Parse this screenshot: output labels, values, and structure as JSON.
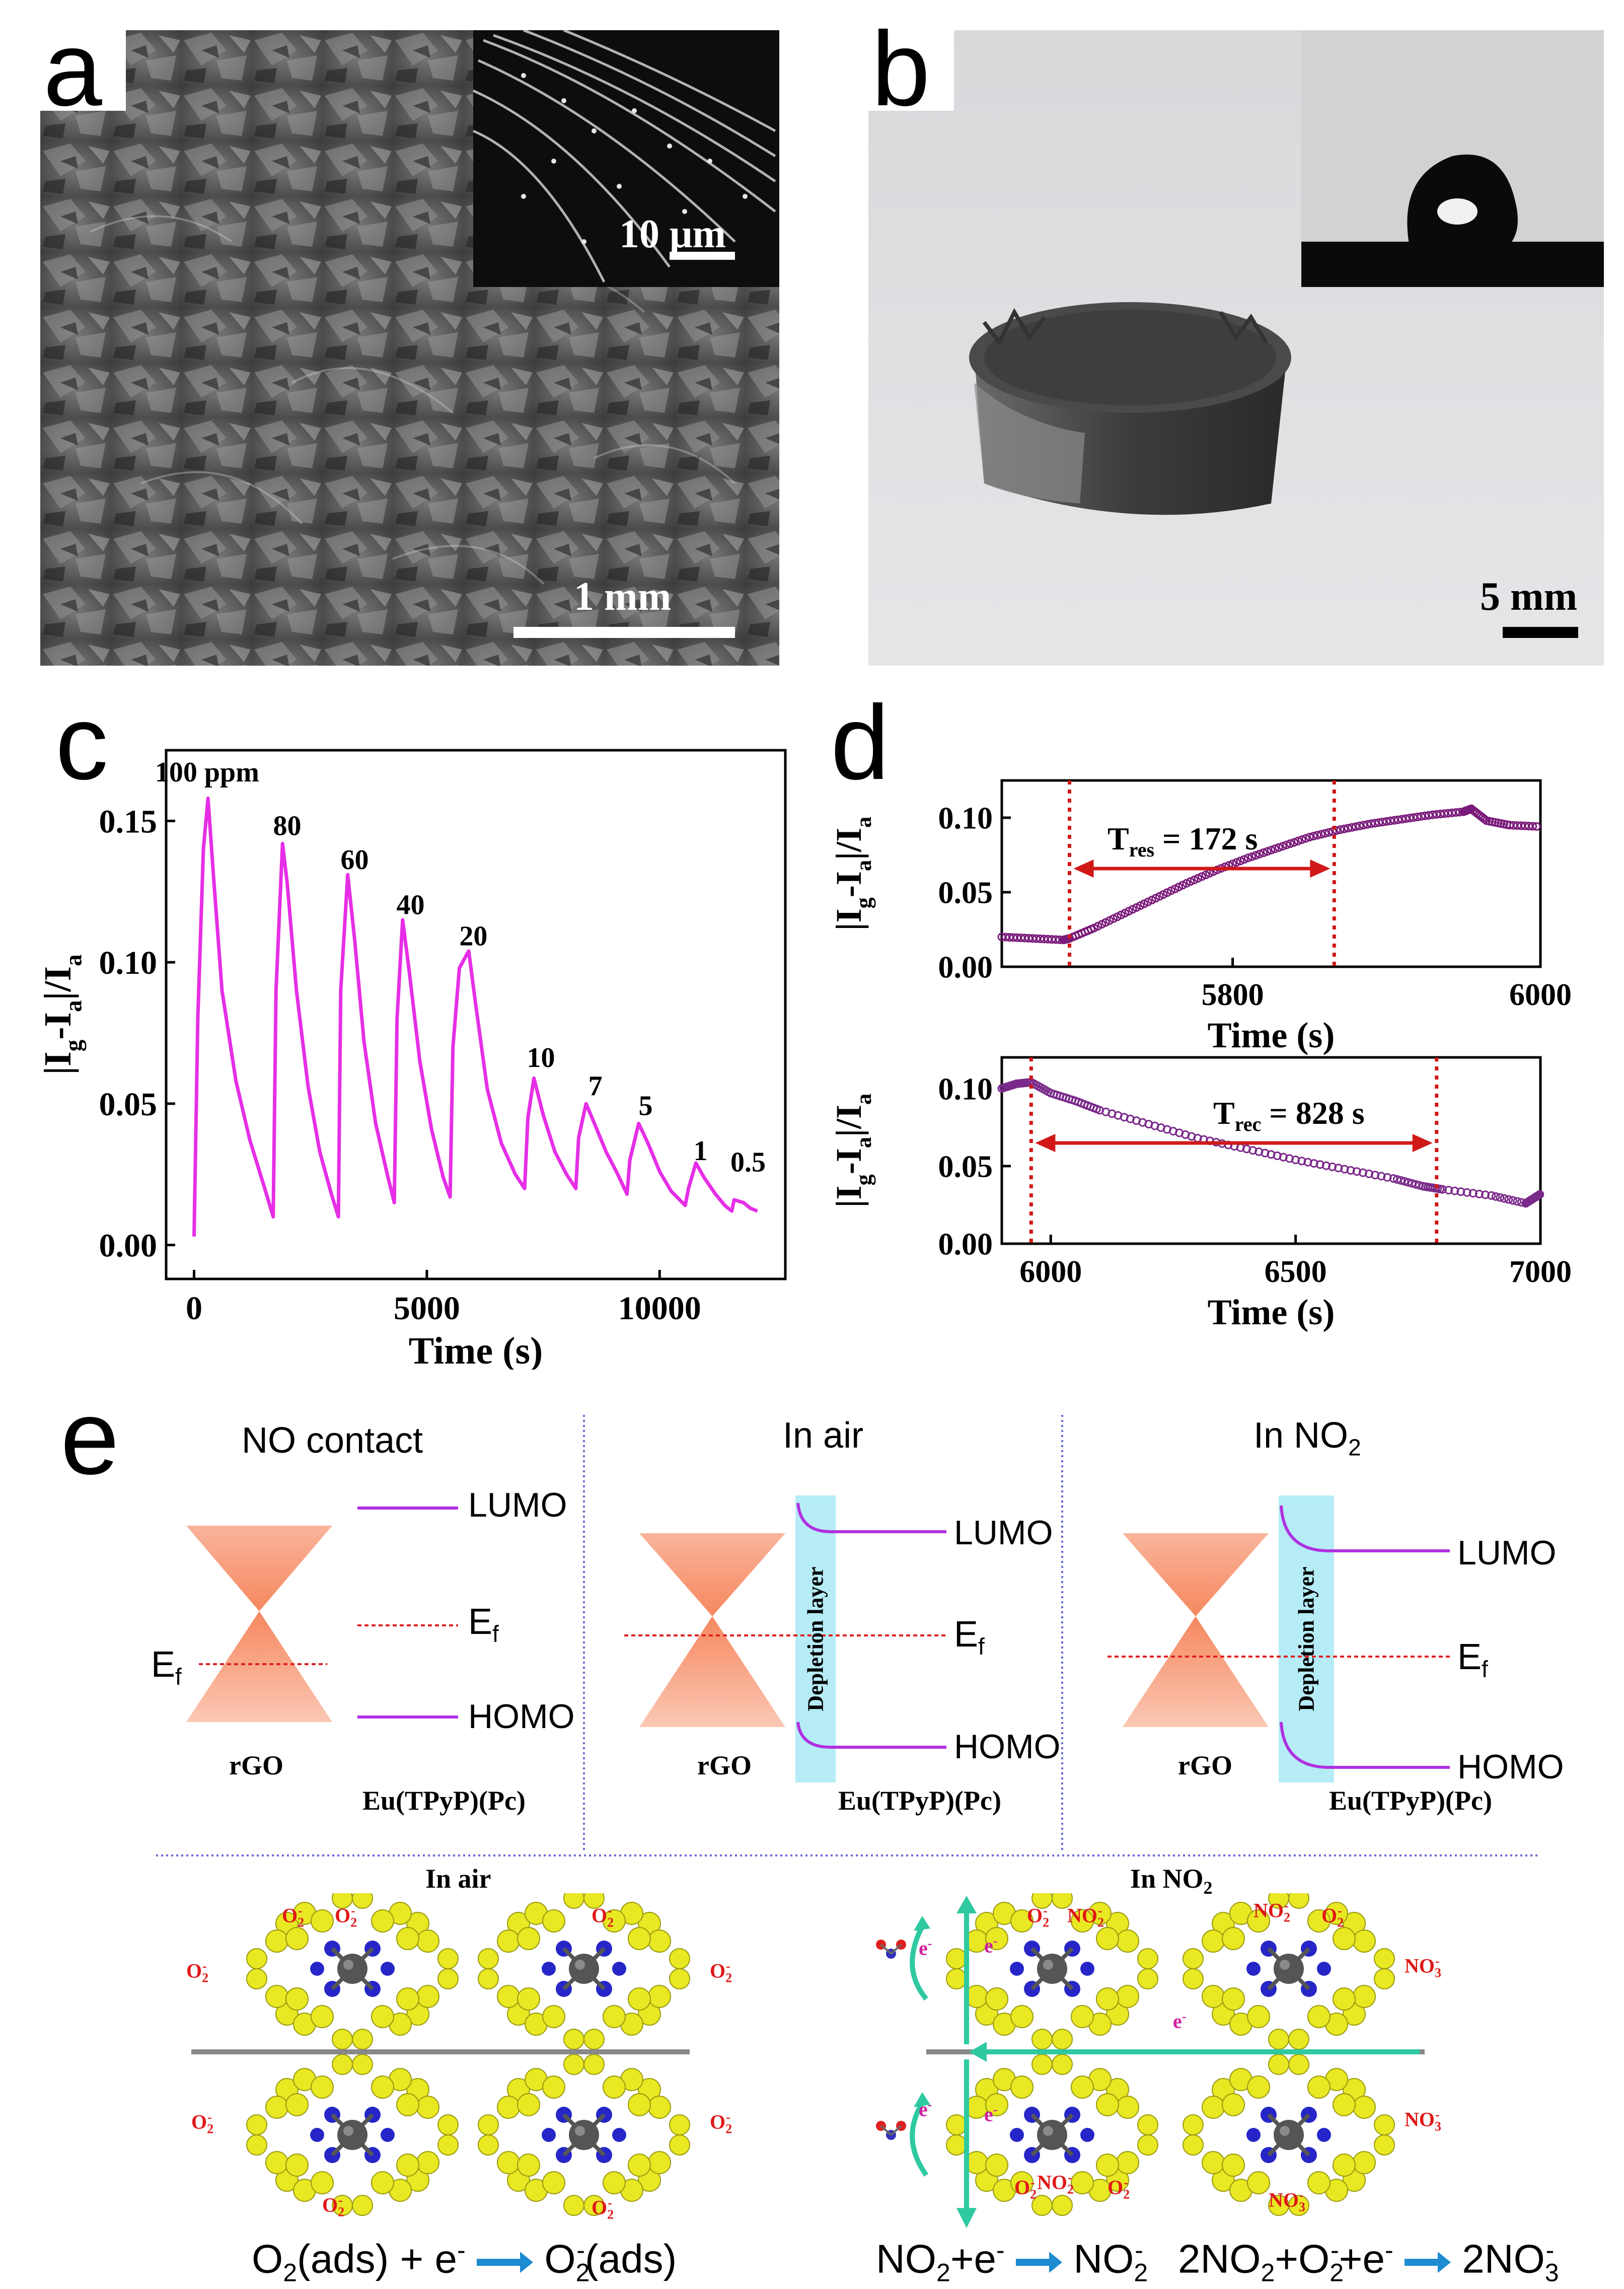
{
  "panels": {
    "a": {
      "label": "a",
      "inset_scale": "10 μm",
      "main_scale": "1 mm"
    },
    "b": {
      "label": "b",
      "scale": "5 mm"
    },
    "c": {
      "label": "c"
    },
    "d": {
      "label": "d"
    },
    "e": {
      "label": "e",
      "band": [
        {
          "title": "NO contact",
          "lumo": "LUMO",
          "homo": "HOMO",
          "ef": "E",
          "ef_sub": "f",
          "rgo": "rGO",
          "mol": "Eu(TPyP)(Pc)"
        },
        {
          "title": "In air",
          "lumo": "LUMO",
          "homo": "HOMO",
          "ef": "E",
          "ef_sub": "f",
          "rgo": "rGO",
          "mol": "Eu(TPyP)(Pc)",
          "depletion": "Depletion layer"
        },
        {
          "title": "In NO",
          "title_sub": "2",
          "lumo": "LUMO",
          "homo": "HOMO",
          "ef": "E",
          "ef_sub": "f",
          "rgo": "rGO",
          "mol": "Eu(TPyP)(Pc)",
          "depletion": "Depletion layer"
        }
      ],
      "mech_air": {
        "title": "In air",
        "ion": "O",
        "ion_sub": "2",
        "ion_sup": "-",
        "eq": {
          "a": "O",
          "a_sub": "2",
          "b": "(ads) + e",
          "b_sup": "-",
          "c": "O",
          "c_sub": "2",
          "c_sup": "-",
          "d": "(ads)"
        }
      },
      "mech_no2": {
        "title": "In NO",
        "title_sub": "2",
        "o2": "O",
        "o2_sub": "2",
        "o2_sup": "-",
        "no2": "NO",
        "no2_sub": "2",
        "no2_sup": "-",
        "no3": "NO",
        "no3_sub": "3",
        "no3_sup": "-",
        "electron": "e",
        "electron_sup": "-",
        "eq1": {
          "a": "NO",
          "a_sub": "2",
          "b": "+e",
          "b_sup": "-",
          "c": "NO",
          "c_sub": "2",
          "c_sup": "-"
        },
        "eq2": {
          "a": "2NO",
          "a_sub": "2",
          "b": "+O",
          "b_sub": "2",
          "b_sup": "-",
          "c": "+e",
          "c_sup": "-",
          "d": "2NO",
          "d_sub": "3",
          "d_sup": "-"
        }
      }
    }
  },
  "chart_data": [
    {
      "type": "line",
      "panel": "c",
      "xlabel": "Time  (s)",
      "ylabel": "|I",
      "ylabel_parts": [
        "|I",
        "g",
        "-I",
        "a",
        "|/I",
        "a"
      ],
      "xlim": [
        -600,
        12700
      ],
      "ylim": [
        -0.012,
        0.175
      ],
      "xticks": [
        0,
        5000,
        10000
      ],
      "yticks": [
        0.0,
        0.05,
        0.1,
        0.15
      ],
      "ytick_labels": [
        "0.00",
        "0.05",
        "0.10",
        "0.15"
      ],
      "color": "#e62ee6",
      "points": [
        [
          0,
          0.003
        ],
        [
          80,
          0.08
        ],
        [
          200,
          0.14
        ],
        [
          300,
          0.158
        ],
        [
          420,
          0.13
        ],
        [
          600,
          0.09
        ],
        [
          900,
          0.058
        ],
        [
          1200,
          0.037
        ],
        [
          1500,
          0.021
        ],
        [
          1700,
          0.01
        ],
        [
          1760,
          0.09
        ],
        [
          1900,
          0.142
        ],
        [
          2000,
          0.128
        ],
        [
          2200,
          0.09
        ],
        [
          2450,
          0.056
        ],
        [
          2700,
          0.033
        ],
        [
          2950,
          0.018
        ],
        [
          3100,
          0.01
        ],
        [
          3150,
          0.09
        ],
        [
          3300,
          0.131
        ],
        [
          3450,
          0.108
        ],
        [
          3650,
          0.072
        ],
        [
          3900,
          0.043
        ],
        [
          4150,
          0.025
        ],
        [
          4300,
          0.015
        ],
        [
          4360,
          0.08
        ],
        [
          4480,
          0.115
        ],
        [
          4620,
          0.097
        ],
        [
          4850,
          0.065
        ],
        [
          5100,
          0.041
        ],
        [
          5350,
          0.024
        ],
        [
          5500,
          0.017
        ],
        [
          5560,
          0.07
        ],
        [
          5700,
          0.098
        ],
        [
          5900,
          0.104
        ],
        [
          6050,
          0.085
        ],
        [
          6300,
          0.055
        ],
        [
          6600,
          0.036
        ],
        [
          6900,
          0.025
        ],
        [
          7100,
          0.02
        ],
        [
          7170,
          0.045
        ],
        [
          7300,
          0.059
        ],
        [
          7500,
          0.046
        ],
        [
          7750,
          0.033
        ],
        [
          8000,
          0.025
        ],
        [
          8200,
          0.02
        ],
        [
          8260,
          0.038
        ],
        [
          8420,
          0.05
        ],
        [
          8600,
          0.043
        ],
        [
          8850,
          0.033
        ],
        [
          9100,
          0.025
        ],
        [
          9300,
          0.018
        ],
        [
          9360,
          0.03
        ],
        [
          9550,
          0.043
        ],
        [
          9750,
          0.036
        ],
        [
          10000,
          0.026
        ],
        [
          10250,
          0.019
        ],
        [
          10550,
          0.014
        ],
        [
          10620,
          0.02
        ],
        [
          10780,
          0.029
        ],
        [
          10950,
          0.024
        ],
        [
          11200,
          0.018
        ],
        [
          11400,
          0.014
        ],
        [
          11550,
          0.012
        ],
        [
          11600,
          0.016
        ],
        [
          11800,
          0.015
        ],
        [
          11950,
          0.013
        ],
        [
          12100,
          0.012
        ]
      ],
      "annotations": [
        {
          "text": "100 ppm",
          "x": 280,
          "y": 0.164
        },
        {
          "text": "80",
          "x": 2000,
          "y": 0.145
        },
        {
          "text": "60",
          "x": 3450,
          "y": 0.133
        },
        {
          "text": "40",
          "x": 4650,
          "y": 0.117
        },
        {
          "text": "20",
          "x": 6000,
          "y": 0.106
        },
        {
          "text": "10",
          "x": 7450,
          "y": 0.063
        },
        {
          "text": "7",
          "x": 8620,
          "y": 0.053
        },
        {
          "text": "5",
          "x": 9700,
          "y": 0.046
        },
        {
          "text": "1",
          "x": 10880,
          "y": 0.03
        },
        {
          "text": "0.5",
          "x": 11900,
          "y": 0.026
        }
      ]
    },
    {
      "type": "scatter",
      "panel": "d-top",
      "xlabel": "Time  (s)",
      "ylabel_parts": [
        "|I",
        "g",
        "-I",
        "a",
        "|/I",
        "a"
      ],
      "xlim": [
        5650,
        6000
      ],
      "ylim": [
        0.0,
        0.125
      ],
      "xticks": [
        5800,
        6000
      ],
      "yticks": [
        0.0,
        0.05,
        0.1
      ],
      "ytick_labels": [
        "0.00",
        "0.05",
        "0.10"
      ],
      "color": "#7a1a7a",
      "points": [
        [
          5650,
          0.02
        ],
        [
          5670,
          0.019
        ],
        [
          5690,
          0.018
        ],
        [
          5694,
          0.019
        ],
        [
          5710,
          0.026
        ],
        [
          5730,
          0.036
        ],
        [
          5750,
          0.046
        ],
        [
          5770,
          0.056
        ],
        [
          5790,
          0.065
        ],
        [
          5810,
          0.073
        ],
        [
          5830,
          0.08
        ],
        [
          5850,
          0.087
        ],
        [
          5870,
          0.092
        ],
        [
          5890,
          0.096
        ],
        [
          5910,
          0.099
        ],
        [
          5930,
          0.102
        ],
        [
          5950,
          0.104
        ],
        [
          5955,
          0.106
        ],
        [
          5965,
          0.098
        ],
        [
          5980,
          0.095
        ],
        [
          6000,
          0.094
        ]
      ],
      "markers": [
        5694,
        5866
      ],
      "annotation": {
        "text": "T",
        "sub": "res",
        "rest": " = 172 s"
      }
    },
    {
      "type": "scatter",
      "panel": "d-bottom",
      "xlabel": "Time  (s)",
      "ylabel_parts": [
        "|I",
        "g",
        "-I",
        "a",
        "|/I",
        "a"
      ],
      "xlim": [
        5900,
        7000
      ],
      "ylim": [
        0.0,
        0.12
      ],
      "xticks": [
        6000,
        6500,
        7000
      ],
      "yticks": [
        0.0,
        0.05,
        0.1
      ],
      "ytick_labels": [
        "0.00",
        "0.05",
        "0.10"
      ],
      "color": "#7a2a8a",
      "points": [
        [
          5900,
          0.1
        ],
        [
          5930,
          0.103
        ],
        [
          5960,
          0.104
        ],
        [
          6000,
          0.097
        ],
        [
          6050,
          0.092
        ],
        [
          6100,
          0.086
        ],
        [
          6200,
          0.077
        ],
        [
          6300,
          0.068
        ],
        [
          6400,
          0.061
        ],
        [
          6500,
          0.054
        ],
        [
          6600,
          0.048
        ],
        [
          6700,
          0.042
        ],
        [
          6760,
          0.037
        ],
        [
          6800,
          0.035
        ],
        [
          6900,
          0.031
        ],
        [
          6970,
          0.026
        ],
        [
          6990,
          0.03
        ],
        [
          7000,
          0.032
        ]
      ],
      "markers": [
        5960,
        6788
      ],
      "annotation": {
        "text": "T",
        "sub": "rec",
        "rest": " = 828 s"
      }
    }
  ]
}
